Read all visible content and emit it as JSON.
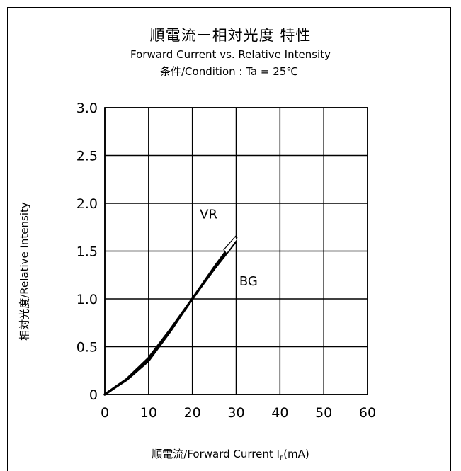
{
  "header": {
    "title_cn": "順電流ー相対光度 特性",
    "title_en": "Forward Current vs. Relative Intensity",
    "condition": "条件/Condition : Ta = 25℃"
  },
  "axes": {
    "ylabel": "相対光度/Relative Intensity",
    "xlabel_main": "順電流/Forward Current I",
    "xlabel_sub": "F",
    "xlabel_unit": "(mA)"
  },
  "chart_data": {
    "type": "line",
    "title": "順電流ー相対光度 特性",
    "subtitle": "Forward Current vs. Relative Intensity",
    "xlabel": "順電流/Forward Current IF(mA)",
    "ylabel": "相対光度/Relative Intensity",
    "xlim": [
      0,
      60
    ],
    "ylim": [
      0,
      3.0
    ],
    "xticks": [
      "0",
      "10",
      "20",
      "30",
      "40",
      "50",
      "60"
    ],
    "yticks": [
      "0",
      "0.5",
      "1.0",
      "1.5",
      "2.0",
      "2.5",
      "3.0"
    ],
    "grid": true,
    "series": [
      {
        "name": "VR",
        "x": [
          0,
          5,
          10,
          15,
          20,
          25,
          30
        ],
        "y": [
          0,
          0.16,
          0.38,
          0.68,
          1.0,
          1.33,
          1.64
        ]
      },
      {
        "name": "BG",
        "x": [
          0,
          5,
          10,
          15,
          20,
          25,
          30
        ],
        "y": [
          0,
          0.15,
          0.35,
          0.66,
          1.0,
          1.31,
          1.6
        ]
      }
    ]
  }
}
